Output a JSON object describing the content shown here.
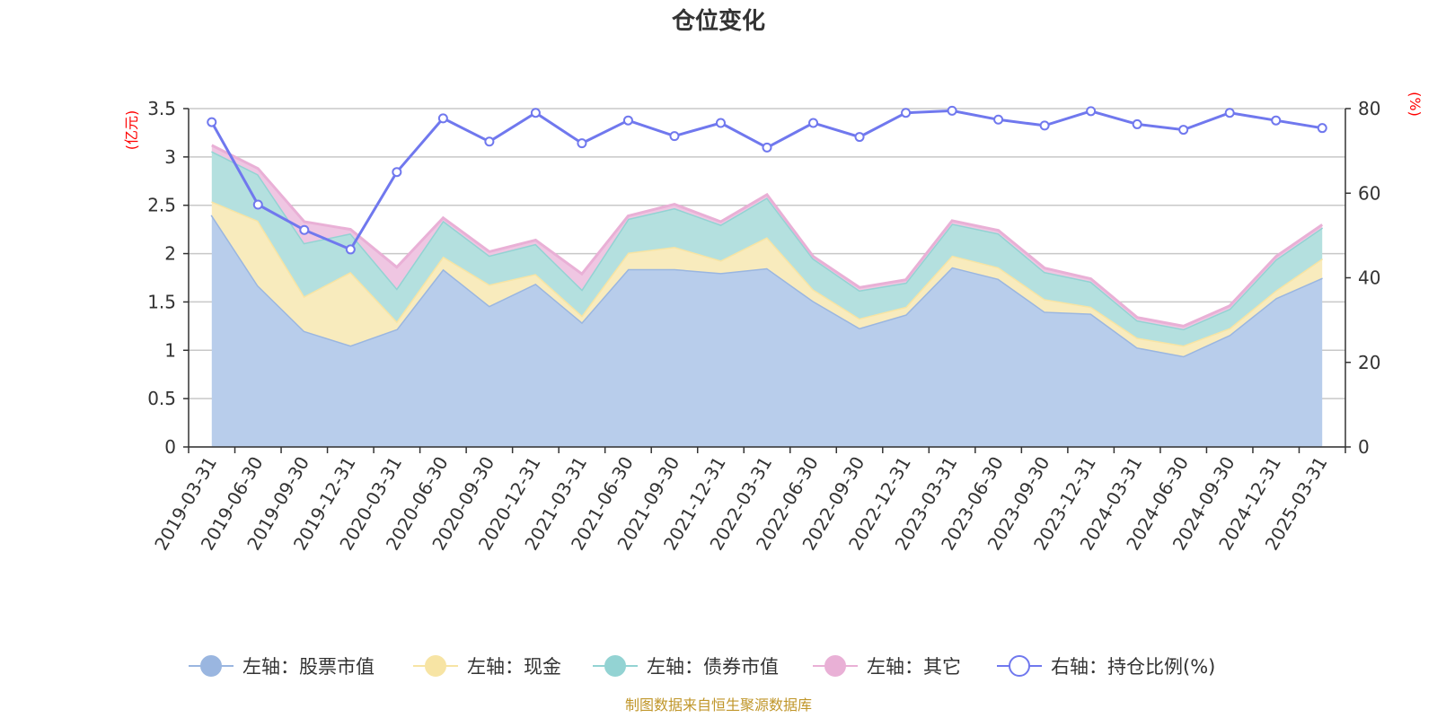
{
  "chart_data": {
    "type": "area",
    "title": "仓位变化",
    "source": "制图数据来自恒生聚源数据库",
    "left_axis": {
      "unit": "(亿元)",
      "ylim": [
        0,
        3.5
      ],
      "ticks": [
        "0",
        "0.5",
        "1",
        "1.5",
        "2",
        "2.5",
        "3",
        "3.5"
      ]
    },
    "right_axis": {
      "unit": "(%)",
      "ylim": [
        0,
        80
      ],
      "ticks": [
        "0",
        "20",
        "40",
        "60",
        "80"
      ]
    },
    "grid": true,
    "legend_position": "bottom",
    "categories": [
      "2019-03-31",
      "2019-06-30",
      "2019-09-30",
      "2019-12-31",
      "2020-03-31",
      "2020-06-30",
      "2020-09-30",
      "2020-12-31",
      "2021-03-31",
      "2021-06-30",
      "2021-09-30",
      "2021-12-31",
      "2022-03-31",
      "2022-06-30",
      "2022-09-30",
      "2022-12-31",
      "2023-03-31",
      "2023-06-30",
      "2023-09-30",
      "2023-12-31",
      "2024-03-31",
      "2024-06-30",
      "2024-09-30",
      "2024-12-31",
      "2025-03-31"
    ],
    "stacked_series": [
      {
        "name": "左轴：股票市值",
        "color": "#9ab6e0",
        "fill": "#b8cdeb",
        "axis": "left",
        "values": [
          2.4,
          1.67,
          1.2,
          1.05,
          1.22,
          1.84,
          1.46,
          1.69,
          1.29,
          1.84,
          1.84,
          1.8,
          1.85,
          1.51,
          1.23,
          1.37,
          1.86,
          1.74,
          1.4,
          1.38,
          1.03,
          0.94,
          1.16,
          1.54,
          1.75
        ]
      },
      {
        "name": "左轴：现金",
        "color": "#f7e4a4",
        "fill": "#f8ebbd",
        "axis": "left",
        "values": [
          0.14,
          0.67,
          0.36,
          0.76,
          0.08,
          0.13,
          0.22,
          0.1,
          0.07,
          0.17,
          0.23,
          0.13,
          0.32,
          0.12,
          0.1,
          0.08,
          0.12,
          0.12,
          0.13,
          0.07,
          0.1,
          0.11,
          0.07,
          0.08,
          0.2
        ]
      },
      {
        "name": "左轴：债券市值",
        "color": "#93d3d3",
        "fill": "#b4e0df",
        "axis": "left",
        "values": [
          0.52,
          0.48,
          0.55,
          0.4,
          0.34,
          0.37,
          0.3,
          0.31,
          0.27,
          0.35,
          0.4,
          0.37,
          0.41,
          0.32,
          0.29,
          0.25,
          0.33,
          0.35,
          0.28,
          0.26,
          0.18,
          0.17,
          0.2,
          0.32,
          0.32
        ]
      },
      {
        "name": "左轴：其它",
        "color": "#e9b0d6",
        "fill": "#efc6e2",
        "axis": "left",
        "values": [
          0.06,
          0.06,
          0.22,
          0.04,
          0.22,
          0.03,
          0.04,
          0.04,
          0.16,
          0.03,
          0.04,
          0.03,
          0.03,
          0.02,
          0.03,
          0.03,
          0.03,
          0.03,
          0.04,
          0.03,
          0.03,
          0.03,
          0.03,
          0.03,
          0.03
        ]
      }
    ],
    "line_series": {
      "name": "右轴：持仓比例(%)",
      "color": "#7078ee",
      "axis": "right",
      "values": [
        76.8,
        57.3,
        51.3,
        46.7,
        65.0,
        77.7,
        72.2,
        79.0,
        71.8,
        77.2,
        73.5,
        76.6,
        70.8,
        76.6,
        73.3,
        79.0,
        79.5,
        77.4,
        76.0,
        79.4,
        76.3,
        75.0,
        79.0,
        77.2,
        75.4
      ]
    }
  }
}
